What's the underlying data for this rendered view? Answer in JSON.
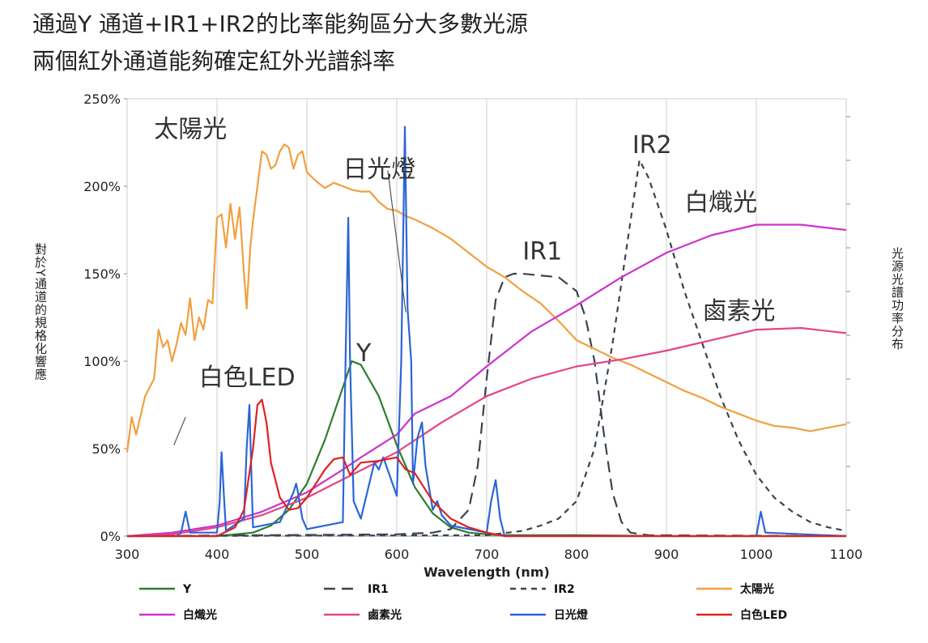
{
  "headings": {
    "line1": "通過Y 通道+IR1+IR2的比率能夠區分大多數光源",
    "line2": "兩個紅外通道能夠確定紅外光譜斜率"
  },
  "chart_data": {
    "type": "line",
    "ylabel": "對於Y通道的規格化響應",
    "y2label": "光源光譜功率分布",
    "xlabel": "Wavelength (nm)",
    "xlim": [
      300,
      1100
    ],
    "ylim": [
      0,
      250
    ],
    "xticks": [
      "300",
      "400",
      "500",
      "600",
      "700",
      "800",
      "900",
      "1000",
      "1100"
    ],
    "yticks": [
      "0%",
      "50%",
      "100%",
      "150%",
      "200%",
      "250%"
    ],
    "grid": "vertical",
    "legend_position": "bottom",
    "annotations": [
      {
        "text": "太陽光",
        "x": 330,
        "y": 228
      },
      {
        "text": "日光燈",
        "x": 540,
        "y": 205
      },
      {
        "text": "IR2",
        "x": 862,
        "y": 219
      },
      {
        "text": "IR1",
        "x": 740,
        "y": 158
      },
      {
        "text": "白熾光",
        "x": 920,
        "y": 186
      },
      {
        "text": "鹵素光",
        "x": 940,
        "y": 124
      },
      {
        "text": "Y",
        "x": 555,
        "y": 100
      },
      {
        "text": "白色LED",
        "x": 380,
        "y": 86
      }
    ],
    "series": [
      {
        "name": "Y",
        "color": "#2e7d2e",
        "dash": "solid",
        "x": [
          300,
          400,
          440,
          460,
          480,
          500,
          520,
          540,
          550,
          560,
          580,
          600,
          620,
          640,
          660,
          680,
          700,
          720,
          800,
          900,
          1100
        ],
        "y": [
          0,
          0,
          2,
          6,
          15,
          30,
          55,
          85,
          100,
          98,
          80,
          52,
          28,
          13,
          5,
          2,
          1,
          0.5,
          0.5,
          0,
          0
        ]
      },
      {
        "name": "IR1",
        "color": "#3a4450",
        "dash": "long",
        "x": [
          300,
          600,
          640,
          660,
          680,
          690,
          700,
          710,
          720,
          730,
          740,
          760,
          780,
          800,
          810,
          820,
          830,
          840,
          850,
          860,
          880,
          1100
        ],
        "y": [
          0,
          1,
          2,
          4,
          15,
          40,
          90,
          135,
          148,
          150,
          150,
          149,
          148,
          140,
          125,
          100,
          60,
          25,
          8,
          2,
          0.5,
          0
        ],
        "annotation_only_points": false
      },
      {
        "name": "IR2",
        "color": "#3a4450",
        "dash": "short",
        "x": [
          300,
          700,
          740,
          760,
          780,
          800,
          820,
          840,
          860,
          870,
          880,
          900,
          920,
          940,
          960,
          980,
          1000,
          1020,
          1040,
          1060,
          1080,
          1100
        ],
        "y": [
          0,
          0.5,
          3,
          6,
          10,
          20,
          50,
          110,
          180,
          215,
          205,
          175,
          140,
          110,
          80,
          55,
          35,
          22,
          14,
          8,
          5,
          3
        ]
      },
      {
        "name": "太陽光",
        "color": "#f0a040",
        "dash": "solid",
        "x": [
          300,
          305,
          310,
          320,
          330,
          335,
          340,
          345,
          350,
          355,
          360,
          365,
          370,
          375,
          380,
          385,
          390,
          395,
          400,
          405,
          410,
          415,
          420,
          425,
          430,
          433,
          437,
          440,
          445,
          450,
          455,
          460,
          465,
          470,
          475,
          480,
          485,
          490,
          495,
          500,
          510,
          520,
          530,
          540,
          550,
          560,
          570,
          580,
          590,
          600,
          610,
          620,
          640,
          660,
          680,
          700,
          720,
          740,
          760,
          780,
          800,
          820,
          840,
          860,
          880,
          900,
          920,
          940,
          960,
          980,
          1000,
          1020,
          1040,
          1060,
          1080,
          1100
        ],
        "y": [
          48,
          68,
          58,
          80,
          90,
          118,
          108,
          112,
          100,
          110,
          122,
          115,
          136,
          112,
          125,
          118,
          135,
          133,
          182,
          184,
          165,
          190,
          170,
          188,
          150,
          130,
          165,
          180,
          200,
          220,
          218,
          210,
          212,
          220,
          224,
          222,
          210,
          218,
          220,
          208,
          203,
          199,
          202,
          200,
          198,
          197,
          197,
          191,
          187,
          186,
          183,
          181,
          176,
          170,
          162,
          154,
          148,
          140,
          133,
          123,
          112,
          107,
          102,
          98,
          93,
          88,
          83,
          79,
          74,
          70,
          66,
          63,
          62,
          60,
          62,
          64
        ]
      },
      {
        "name": "白熾光",
        "color": "#cc33cc",
        "dash": "solid",
        "x": [
          300,
          350,
          400,
          450,
          500,
          540,
          560,
          600,
          620,
          660,
          700,
          750,
          800,
          850,
          900,
          950,
          1000,
          1050,
          1100
        ],
        "y": [
          0,
          2,
          6,
          14,
          25,
          38,
          45,
          58,
          70,
          80,
          97,
          117,
          132,
          148,
          162,
          172,
          178,
          178,
          175
        ]
      },
      {
        "name": "鹵素光",
        "color": "#e44488",
        "dash": "solid",
        "x": [
          300,
          350,
          400,
          450,
          500,
          550,
          600,
          650,
          700,
          750,
          800,
          850,
          900,
          950,
          1000,
          1050,
          1100
        ],
        "y": [
          0,
          1,
          5,
          12,
          22,
          35,
          48,
          65,
          80,
          90,
          97,
          101,
          106,
          112,
          118,
          119,
          116
        ]
      },
      {
        "name": "日光燈",
        "color": "#2a66d6",
        "dash": "solid",
        "x": [
          300,
          355,
          360,
          365,
          370,
          400,
          403,
          405,
          408,
          410,
          430,
          433,
          436,
          438,
          440,
          470,
          485,
          488,
          490,
          495,
          500,
          540,
          543,
          546,
          548,
          552,
          560,
          575,
          580,
          585,
          600,
          605,
          609,
          612,
          616,
          618,
          623,
          628,
          632,
          640,
          645,
          650,
          660,
          700,
          705,
          710,
          715,
          720,
          1000,
          1005,
          1010,
          1100
        ],
        "y": [
          0,
          0,
          2,
          14,
          2,
          2,
          20,
          48,
          20,
          3,
          10,
          50,
          75,
          40,
          5,
          8,
          25,
          30,
          25,
          10,
          4,
          8,
          100,
          182,
          100,
          20,
          10,
          42,
          38,
          45,
          23,
          100,
          234,
          130,
          100,
          30,
          56,
          65,
          40,
          15,
          20,
          12,
          6,
          2,
          20,
          32,
          10,
          0,
          0,
          14,
          2,
          0
        ]
      },
      {
        "name": "白色LED",
        "color": "#dd2222",
        "dash": "solid",
        "x": [
          300,
          400,
          420,
          430,
          440,
          445,
          450,
          455,
          460,
          470,
          480,
          490,
          500,
          520,
          530,
          540,
          548,
          560,
          580,
          600,
          610,
          620,
          640,
          660,
          680,
          700,
          720,
          1100
        ],
        "y": [
          0,
          0,
          5,
          15,
          50,
          75,
          78,
          65,
          42,
          22,
          15,
          16,
          22,
          38,
          44,
          45,
          35,
          42,
          43,
          45,
          38,
          36,
          20,
          10,
          5,
          2,
          0,
          0
        ]
      }
    ],
    "legend": [
      {
        "label": "Y",
        "color": "#2e7d2e",
        "dash": "solid"
      },
      {
        "label": "IR1",
        "color": "#3a4450",
        "dash": "long"
      },
      {
        "label": "IR2",
        "color": "#3a4450",
        "dash": "short"
      },
      {
        "label": "太陽光",
        "color": "#f0a040",
        "dash": "solid"
      },
      {
        "label": "白熾光",
        "color": "#cc33cc",
        "dash": "solid"
      },
      {
        "label": "鹵素光",
        "color": "#e44488",
        "dash": "solid"
      },
      {
        "label": "日光燈",
        "color": "#2a66d6",
        "dash": "solid"
      },
      {
        "label": "白色LED",
        "color": "#dd2222",
        "dash": "solid"
      }
    ]
  }
}
